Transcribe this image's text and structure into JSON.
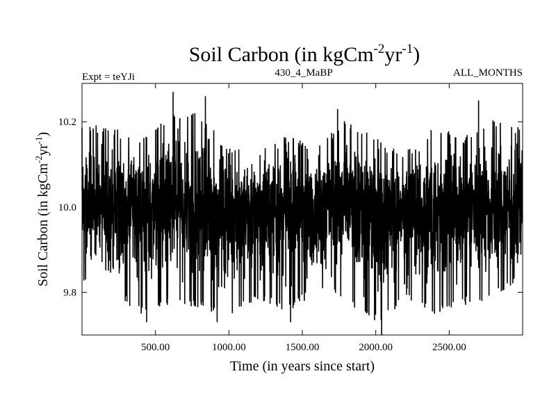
{
  "chart_data": {
    "type": "line",
    "title": {
      "main": "Soil Carbon (in kgCm",
      "sup1": "-2",
      "mid": "yr",
      "sup2": "-1",
      "end": ")"
    },
    "header": {
      "left": "Expt = teYJi",
      "center": "430_4_MaBP",
      "right": "ALL_MONTHS"
    },
    "xlabel": "Time (in years since start)",
    "ylabel": {
      "main": "Soil Carbon (in kgCm",
      "sup1": "-2",
      "mid": "yr",
      "sup2": "-1",
      "end": ")"
    },
    "xlim": [
      0,
      3000
    ],
    "ylim": [
      9.7,
      10.29
    ],
    "xticks": [
      500,
      1000,
      1500,
      2000,
      2500
    ],
    "xtick_labels": [
      "500.00",
      "1000.00",
      "1500.00",
      "2000.00",
      "2500.00"
    ],
    "yticks": [
      9.8,
      10.0,
      10.2
    ],
    "ytick_labels": [
      "9.8",
      "10.0",
      "10.2"
    ],
    "series": [
      {
        "color": "#000000",
        "mean": 10.0,
        "x_range": [
          0,
          3000
        ],
        "points": 3000,
        "envelope": {
          "x": [
            0,
            200,
            400,
            600,
            800,
            1000,
            1200,
            1400,
            1600,
            1800,
            2000,
            2200,
            2400,
            2600,
            2800,
            3000
          ],
          "upper": [
            10.2,
            10.19,
            10.17,
            10.22,
            10.22,
            10.14,
            10.13,
            10.17,
            10.14,
            10.21,
            10.17,
            10.13,
            10.19,
            10.17,
            10.21,
            10.19
          ],
          "lower": [
            9.83,
            9.79,
            9.75,
            9.77,
            9.76,
            9.74,
            9.78,
            9.75,
            9.8,
            9.78,
            9.72,
            9.78,
            9.75,
            9.77,
            9.78,
            9.84
          ]
        },
        "extremes": [
          {
            "x": 620,
            "y": 10.27
          },
          {
            "x": 840,
            "y": 10.26
          },
          {
            "x": 1740,
            "y": 10.23
          },
          {
            "x": 2700,
            "y": 10.25
          },
          {
            "x": 440,
            "y": 9.73
          },
          {
            "x": 920,
            "y": 9.73
          },
          {
            "x": 1420,
            "y": 9.73
          },
          {
            "x": 2040,
            "y": 9.7
          },
          {
            "x": 2400,
            "y": 9.75
          }
        ]
      }
    ],
    "grid": false,
    "legend": "none"
  }
}
